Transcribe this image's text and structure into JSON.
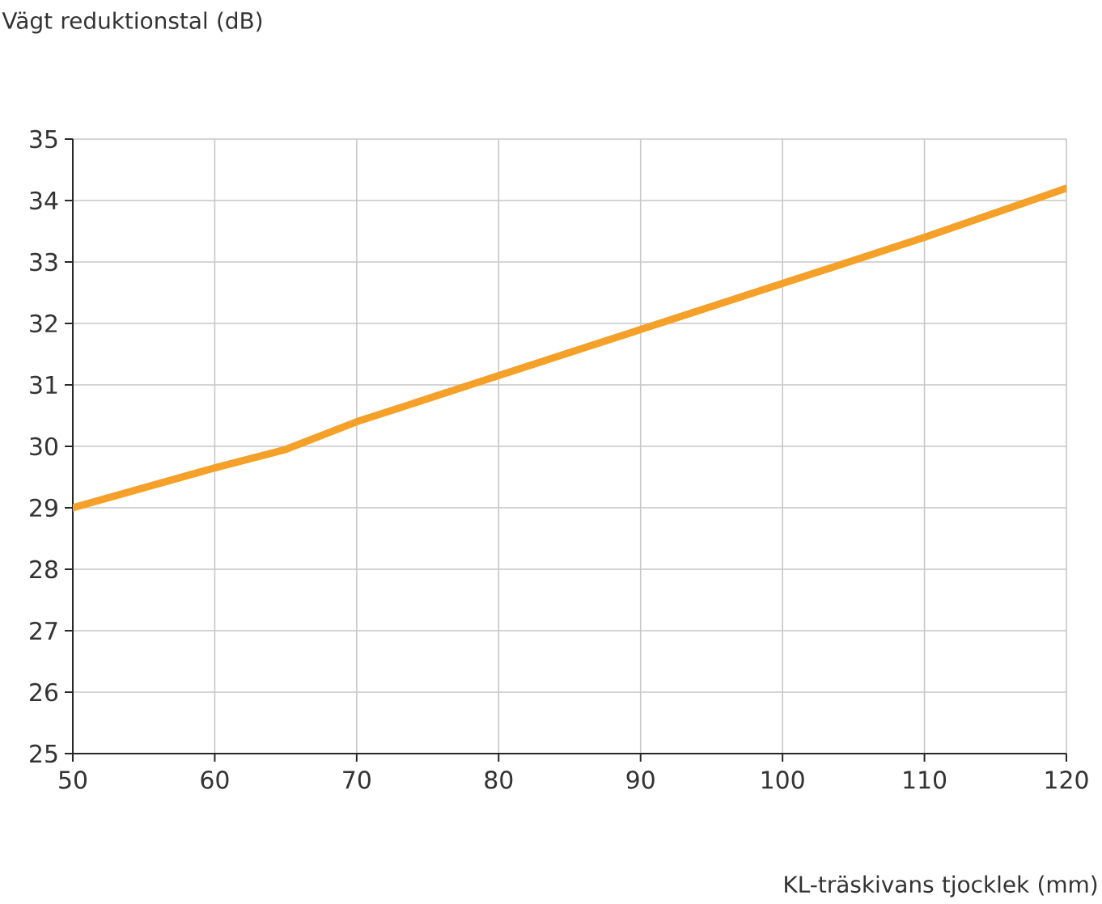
{
  "chart_data": {
    "type": "line",
    "xlabel": "KL-träskivans tjocklek (mm)",
    "ylabel": "Vägt reduktionstal (dB)",
    "x": [
      50,
      60,
      65,
      70,
      80,
      90,
      100,
      110,
      120
    ],
    "series": [
      {
        "color": "#f5a028",
        "values": [
          29.0,
          29.65,
          29.95,
          30.4,
          31.15,
          31.9,
          32.65,
          33.4,
          34.2
        ]
      }
    ],
    "xlim": [
      50,
      120
    ],
    "ylim": [
      25,
      35
    ],
    "xticks": [
      50,
      60,
      70,
      80,
      90,
      100,
      110,
      120
    ],
    "yticks": [
      25,
      26,
      27,
      28,
      29,
      30,
      31,
      32,
      33,
      34,
      35
    ],
    "grid": true
  }
}
